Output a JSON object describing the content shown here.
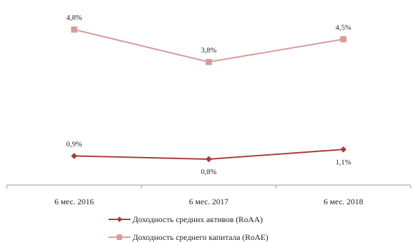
{
  "chart_data": {
    "type": "line",
    "categories": [
      "6 мес. 2016",
      "6 мес. 2017",
      "6 мес. 2018"
    ],
    "series": [
      {
        "name": "Доходность средних активов (RoAA)",
        "values": [
          0.9,
          0.8,
          1.1
        ],
        "labels": [
          "0,9%",
          "0,8%",
          "1,1%"
        ],
        "color": "#a83a3a",
        "marker": "diamond",
        "label_position": [
          "above",
          "below",
          "below"
        ]
      },
      {
        "name": "Доходность среднего капитала (RoAE)",
        "values": [
          4.8,
          3.8,
          4.5
        ],
        "labels": [
          "4,8%",
          "3,8%",
          "4,5%"
        ],
        "color": "#d99a9a",
        "marker": "square",
        "label_position": [
          "above",
          "above",
          "above"
        ]
      }
    ],
    "ylim": [
      0,
      5.5
    ],
    "grid": false,
    "legend_position": "bottom",
    "title": "",
    "xlabel": "",
    "ylabel": ""
  }
}
